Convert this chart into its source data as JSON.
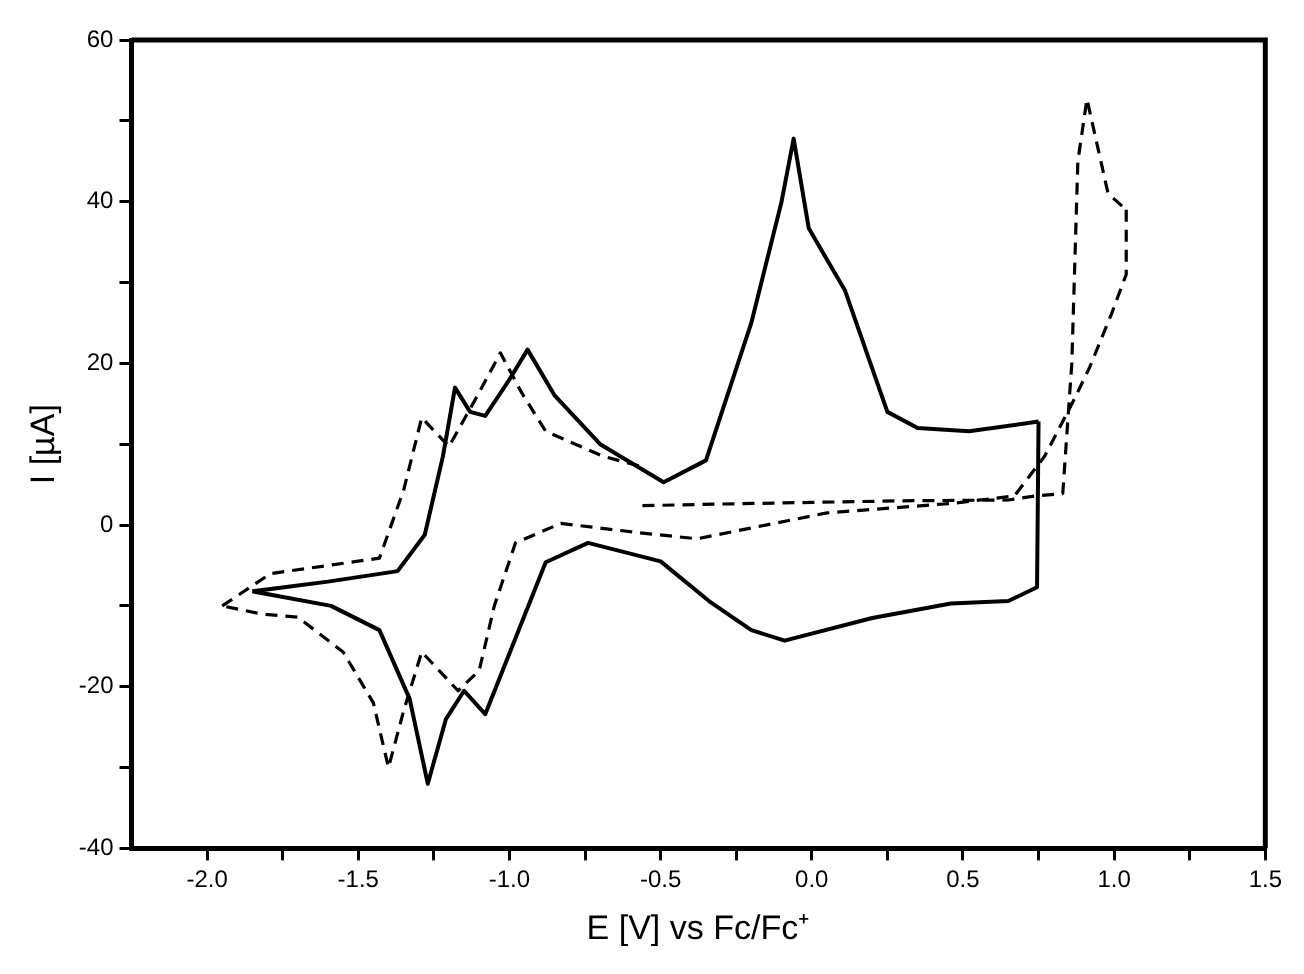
{
  "chart_data": {
    "type": "line",
    "xlabel": "E [V] vs Fc/Fc⁺",
    "ylabel": "I [µA]",
    "xlim": [
      -2.25,
      1.5
    ],
    "ylim": [
      -40,
      60
    ],
    "xticks": [
      {
        "value": -2,
        "label": "-2.0"
      },
      {
        "value": -1.75,
        "label": null
      },
      {
        "value": -1.5,
        "label": "-1.5"
      },
      {
        "value": -1.25,
        "label": null
      },
      {
        "value": -1,
        "label": "-1.0"
      },
      {
        "value": -0.75,
        "label": null
      },
      {
        "value": -0.5,
        "label": "-0.5"
      },
      {
        "value": -0.25,
        "label": null
      },
      {
        "value": 0,
        "label": "0.0"
      },
      {
        "value": 0.25,
        "label": null
      },
      {
        "value": 0.5,
        "label": "0.5"
      },
      {
        "value": 0.75,
        "label": null
      },
      {
        "value": 1,
        "label": "1.0"
      },
      {
        "value": 1.25,
        "label": null
      },
      {
        "value": 1.5,
        "label": "1.5"
      }
    ],
    "yticks": [
      -40,
      {
        "value": -30,
        "label": null
      },
      -20,
      {
        "value": -10,
        "label": null
      },
      0,
      {
        "value": 10,
        "label": null
      },
      20,
      {
        "value": 30,
        "label": null
      },
      40,
      {
        "value": 50,
        "label": null
      },
      60
    ],
    "grid": false,
    "legend": false,
    "marker": "none",
    "series": [
      {
        "color": "#000000",
        "line_style": "solid",
        "x": [
          -1.85,
          -1.6,
          -1.37,
          -1.28,
          -1.22,
          -1.18,
          -1.13,
          -1.08,
          -1.0,
          -0.94,
          -0.85,
          -0.7,
          -0.49,
          -0.35,
          -0.2,
          -0.1,
          -0.06,
          -0.01,
          0.11,
          0.25,
          0.35,
          0.52,
          0.75
        ],
        "values": [
          -8.2,
          -7,
          -5.7,
          -1.2,
          8.5,
          17,
          14,
          13.5,
          18,
          21.7,
          16,
          10,
          5.3,
          8,
          25,
          40,
          47.8,
          36.7,
          29,
          14,
          12,
          11.6,
          12.8
        ]
      },
      {
        "color": "#000000",
        "line_style": "solid",
        "x": [
          0.75,
          0.745,
          0.65,
          0.46,
          0.2,
          -0.09,
          -0.2,
          -0.34,
          -0.5,
          -0.74,
          -0.88,
          -0.98,
          -1.08,
          -1.15,
          -1.21,
          -1.27,
          -1.33,
          -1.43,
          -1.59,
          -1.85
        ],
        "values": [
          12.8,
          -7.7,
          -9.4,
          -9.7,
          -11.5,
          -14.3,
          -13,
          -9.4,
          -4.5,
          -2.2,
          -4.6,
          -14,
          -23.4,
          -20.5,
          -24,
          -32,
          -21.5,
          -13,
          -10,
          -8.2
        ]
      },
      {
        "color": "#000000",
        "line_style": "dashed",
        "x": [
          -0.56,
          -0.3,
          0.0,
          0.3,
          0.65,
          0.74,
          0.83,
          0.86,
          0.88,
          0.91,
          0.98,
          1.04
        ],
        "values": [
          2.4,
          2.6,
          2.8,
          3,
          3.1,
          3.6,
          3.9,
          20,
          45,
          52.7,
          41,
          39
        ]
      },
      {
        "color": "#000000",
        "line_style": "dashed",
        "x": [
          1.04,
          1.04,
          0.99,
          0.92,
          0.87,
          0.77,
          0.67,
          0.47,
          0.05,
          -0.38,
          -0.56,
          -0.83,
          -0.98,
          -1.05,
          -1.1,
          -1.17,
          -1.29,
          -1.35,
          -1.4,
          -1.45,
          -1.55,
          -1.7,
          -1.82,
          -1.95
        ],
        "values": [
          39,
          31,
          26,
          19.6,
          15.7,
          8.5,
          3.6,
          2.7,
          1.5,
          -1.7,
          -1,
          0.2,
          -2.2,
          -10,
          -18,
          -20.5,
          -15.7,
          -23,
          -30,
          -22,
          -15.7,
          -11.4,
          -11,
          -10
        ]
      },
      {
        "color": "#000000",
        "line_style": "dashed",
        "x": [
          -1.95,
          -1.79,
          -1.6,
          -1.43,
          -1.35,
          -1.29,
          -1.2,
          -1.1,
          -1.03,
          -0.96,
          -0.88,
          -0.69,
          -0.56
        ],
        "values": [
          -10,
          -6,
          -5,
          -4.1,
          4.3,
          13.3,
          9.7,
          16.4,
          21.3,
          16.4,
          11.6,
          8.5,
          7.2
        ]
      }
    ]
  }
}
